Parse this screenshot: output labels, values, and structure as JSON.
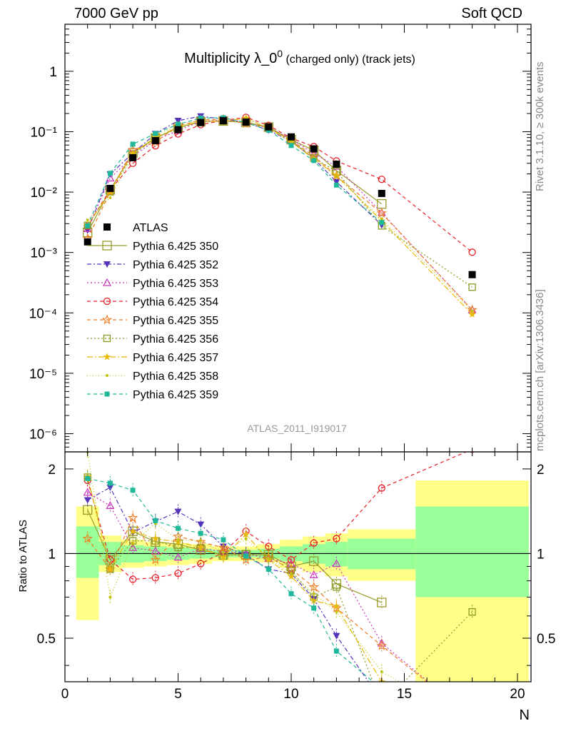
{
  "header": {
    "left": "7000 GeV pp",
    "right": "Soft QCD"
  },
  "side_labels": {
    "rivet": "Rivet 3.1.10, ≥ 300k events",
    "mcplots": "mcplots.cern.ch [arXiv:1306.3436]"
  },
  "chart_data": {
    "type": "line",
    "title_main": "Multiplicity λ_0",
    "title_sup": "0",
    "title_suffix": "(charged only) (track jets)",
    "analysis_label": "ATLAS_2011_I919017",
    "xlabel": "N",
    "ylabel_ratio": "Ratio to ATLAS",
    "xlim": [
      0,
      20.6
    ],
    "ylim_main": [
      5e-07,
      6
    ],
    "ylim_ratio": [
      0.35,
      2.3
    ],
    "y_scale_main": "log",
    "y_scale_ratio": "log",
    "x_ticks": [
      "0",
      "5",
      "10",
      "15",
      "20"
    ],
    "y_ticks_main": [
      "1",
      "10⁻¹",
      "10⁻²",
      "10⁻³",
      "10⁻⁴",
      "10⁻⁵",
      "10⁻⁶"
    ],
    "y_ticks_ratio": [
      "2",
      "1",
      "0.5"
    ],
    "legend_position": "middle-left",
    "x": [
      1,
      2,
      3,
      4,
      5,
      6,
      7,
      8,
      9,
      10,
      11,
      12,
      14,
      18
    ],
    "data": {
      "name": "ATLAS",
      "values": [
        0.0015,
        0.0115,
        0.037,
        0.071,
        0.108,
        0.142,
        0.152,
        0.144,
        0.12,
        0.082,
        0.052,
        0.029,
        0.0095,
        0.00043
      ]
    },
    "ratio_bands": {
      "edges": [
        0.5,
        1.5,
        2.5,
        3.5,
        4.5,
        5.5,
        6.5,
        7.5,
        8.5,
        9.5,
        10.5,
        11.5,
        12.5,
        15.5,
        20.5
      ],
      "green_lo": [
        0.82,
        0.91,
        0.93,
        0.94,
        0.95,
        0.96,
        0.97,
        0.97,
        0.96,
        0.94,
        0.92,
        0.9,
        0.88,
        0.7
      ],
      "green_hi": [
        1.25,
        1.1,
        1.07,
        1.06,
        1.05,
        1.04,
        1.03,
        1.03,
        1.04,
        1.06,
        1.08,
        1.1,
        1.13,
        1.47
      ],
      "yellow_lo": [
        0.58,
        0.86,
        0.89,
        0.9,
        0.91,
        0.92,
        0.94,
        0.94,
        0.93,
        0.89,
        0.86,
        0.83,
        0.8,
        0.3
      ],
      "yellow_hi": [
        1.47,
        1.16,
        1.12,
        1.1,
        1.09,
        1.08,
        1.06,
        1.06,
        1.08,
        1.12,
        1.15,
        1.18,
        1.22,
        1.82
      ]
    },
    "series": [
      {
        "name": "Pythia 6.425 350",
        "color": "#9a9a2b",
        "marker": "open-square-large",
        "dash": "",
        "ratio": [
          1.43,
          0.95,
          1.2,
          1.1,
          1.08,
          1.03,
          0.99,
          0.99,
          0.99,
          0.9,
          0.94,
          0.78,
          0.67,
          null
        ]
      },
      {
        "name": "Pythia 6.425 352",
        "color": "#5533bb",
        "marker": "triangle-down",
        "dash": "6,3,2,3",
        "ratio": [
          1.55,
          1.72,
          1.19,
          1.3,
          1.41,
          1.27,
          1.06,
          0.99,
          0.88,
          0.85,
          0.69,
          0.51,
          0.3,
          null
        ]
      },
      {
        "name": "Pythia 6.425 353",
        "color": "#cc33bb",
        "marker": "open-triangle",
        "dash": "2,3",
        "ratio": [
          1.65,
          1.48,
          1.05,
          1.02,
          0.97,
          1.04,
          1.02,
          1.0,
          0.96,
          0.92,
          0.84,
          0.92,
          0.48,
          0.26
        ]
      },
      {
        "name": "Pythia 6.425 354",
        "color": "#e8202a",
        "marker": "open-circle",
        "dash": "5,4",
        "ratio": [
          1.82,
          0.95,
          0.81,
          0.82,
          0.85,
          0.92,
          1.01,
          1.2,
          1.06,
          0.95,
          1.09,
          1.13,
          1.71,
          2.35
        ]
      },
      {
        "name": "Pythia 6.425 355",
        "color": "#f07a20",
        "marker": "open-star",
        "dash": "5,4",
        "ratio": [
          1.13,
          0.88,
          1.34,
          0.95,
          1.15,
          1.1,
          1.05,
          0.95,
          0.97,
          0.88,
          0.76,
          0.64,
          0.47,
          0.26
        ]
      },
      {
        "name": "Pythia 6.425 356",
        "color": "#8a9a22",
        "marker": "open-square",
        "dash": "2,3",
        "ratio": [
          1.87,
          0.88,
          1.11,
          1.11,
          1.05,
          1.05,
          0.98,
          1.0,
          0.98,
          0.87,
          0.7,
          0.76,
          0.29,
          0.62
        ]
      },
      {
        "name": "Pythia 6.425 357",
        "color": "#e8b80a",
        "marker": "star-small",
        "dash": "8,3,2,3",
        "ratio": [
          1.88,
          0.88,
          1.2,
          1.13,
          1.1,
          1.05,
          0.97,
          1.17,
          0.95,
          0.83,
          0.68,
          0.65,
          0.35,
          0.22
        ]
      },
      {
        "name": "Pythia 6.425 358",
        "color": "#c2c20a",
        "marker": "dot",
        "dash": "1,3",
        "ratio": [
          2.3,
          0.7,
          1.09,
          1.28,
          1.12,
          1.11,
          1.01,
          1.13,
          0.96,
          0.85,
          0.72,
          0.62,
          0.38,
          0.25
        ]
      },
      {
        "name": "Pythia 6.425 359",
        "color": "#1fb89a",
        "marker": "filled-square",
        "dash": "5,4",
        "ratio": [
          1.85,
          1.78,
          1.68,
          1.31,
          1.23,
          1.18,
          1.12,
          0.98,
          0.88,
          0.72,
          0.64,
          0.45,
          0.33,
          null
        ]
      }
    ]
  }
}
